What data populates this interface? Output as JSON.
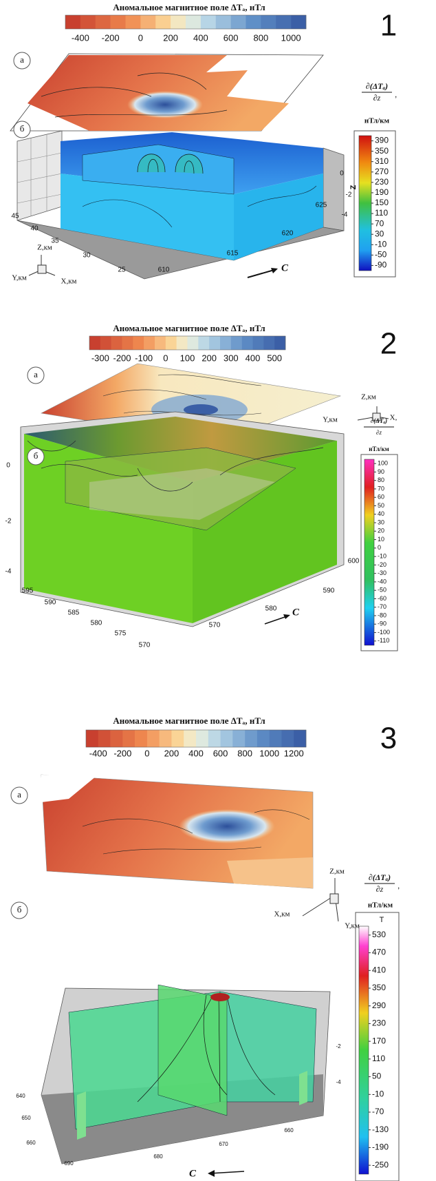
{
  "panels": [
    {
      "number": 1,
      "title": "Аномальное магнитное поле ΔTₐ, нТл",
      "scale_ticks": [
        -400,
        -200,
        0,
        200,
        400,
        600,
        800,
        1000
      ],
      "label_a": "а",
      "label_b": "б",
      "derivative_numerator": "∂(ΔTₐ)",
      "derivative_denominator": "∂z",
      "derivative_suffix": ",",
      "derivative_unit": "нТл/км",
      "derivative_ticks": [
        390,
        350,
        310,
        270,
        230,
        190,
        150,
        110,
        70,
        30,
        -10,
        -50,
        -90
      ],
      "z_ticks": [
        0,
        -2,
        -4
      ],
      "z_axis_label": "Z",
      "y_ticks": [
        45,
        40,
        35,
        30,
        25
      ],
      "x_ticks": [
        610,
        615,
        620,
        625
      ],
      "triad": {
        "z": "Z,км",
        "y": "Y,км",
        "x": "X,км"
      },
      "direction": "C"
    },
    {
      "number": 2,
      "title": "Аномальное магнитное поле ΔTₐ, нТл",
      "scale_ticks": [
        -300,
        -200,
        -100,
        0,
        100,
        200,
        300,
        400,
        500
      ],
      "label_a": "а",
      "label_b": "б",
      "derivative_numerator": "∂(ΔTₐ)",
      "derivative_denominator": "∂z",
      "derivative_unit": "нТл/км",
      "derivative_ticks": [
        100,
        90,
        80,
        70,
        60,
        50,
        40,
        30,
        20,
        10,
        0,
        -10,
        -20,
        -30,
        -40,
        -50,
        -60,
        -70,
        -80,
        -90,
        -100,
        -110
      ],
      "z_ticks": [
        0,
        -2,
        -4
      ],
      "y_ticks": [
        595,
        590,
        585,
        580,
        575,
        570
      ],
      "x_ticks": [
        570,
        580,
        590,
        600
      ],
      "triad": {
        "z": "Z,км",
        "y": "Y,км",
        "x": "X,"
      },
      "direction": "C"
    },
    {
      "number": 3,
      "title": "Аномальное магнитное поле ΔTₐ, нТл",
      "scale_ticks": [
        -400,
        -200,
        0,
        200,
        400,
        600,
        800,
        1000,
        1200
      ],
      "label_a": "а",
      "label_b": "б",
      "derivative_numerator": "∂(ΔTₐ)",
      "derivative_denominator": "∂z",
      "derivative_suffix": ",",
      "derivative_unit": "нТл/км",
      "derivative_header": "T",
      "derivative_ticks": [
        530,
        470,
        410,
        350,
        290,
        230,
        170,
        110,
        50,
        -10,
        -70,
        -130,
        -190,
        -250
      ],
      "z_ticks": [
        -2,
        -4
      ],
      "y_ticks": [
        640,
        650,
        660
      ],
      "x_ticks": [
        690,
        680,
        670,
        660
      ],
      "triad": {
        "z": "Z,км",
        "x": "X,км",
        "y": "Y,км"
      },
      "direction": "C"
    }
  ]
}
